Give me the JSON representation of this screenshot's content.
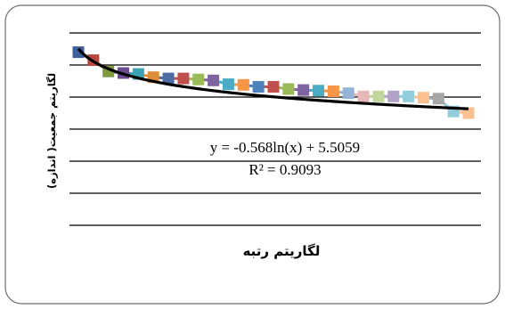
{
  "chart_data": {
    "type": "line",
    "title": "",
    "xlabel": "لگاریتم رتبه",
    "ylabel": "لگاریتم جمعیت( اندازه)",
    "grid": true,
    "legend": "none",
    "ylim": [
      0,
      6
    ],
    "series": [
      {
        "values": [
          5.4,
          5.15,
          4.8,
          4.75,
          4.72,
          4.62,
          4.58,
          4.58,
          4.55,
          4.52,
          4.4,
          4.38,
          4.32,
          4.32,
          4.25,
          4.22,
          4.2,
          4.18,
          4.12,
          4.02,
          4.02,
          4.02,
          4.02,
          3.98,
          3.95,
          3.55,
          3.5
        ],
        "colors": [
          "#3d5f9a",
          "#b8473d",
          "#7d9a3f",
          "#6a4f8f",
          "#3ea2b7",
          "#e08d3a",
          "#4d6ca3",
          "#c0504d",
          "#9bbb59",
          "#8064a2",
          "#4bacc6",
          "#f79646",
          "#4f81bd",
          "#c0504d",
          "#9bbb59",
          "#8064a2",
          "#4bacc6",
          "#f79646",
          "#95b3d7",
          "#e6b9b8",
          "#c3d69b",
          "#b3a2c7",
          "#92cddc",
          "#fac090",
          "#a6a6a6",
          "#92cddc",
          "#fac090"
        ]
      }
    ],
    "trendline": {
      "equation": "y = -0.568ln(x) + 5.5059",
      "r2": "R² = 0.9093",
      "a": -0.568,
      "b": 5.5059
    }
  }
}
